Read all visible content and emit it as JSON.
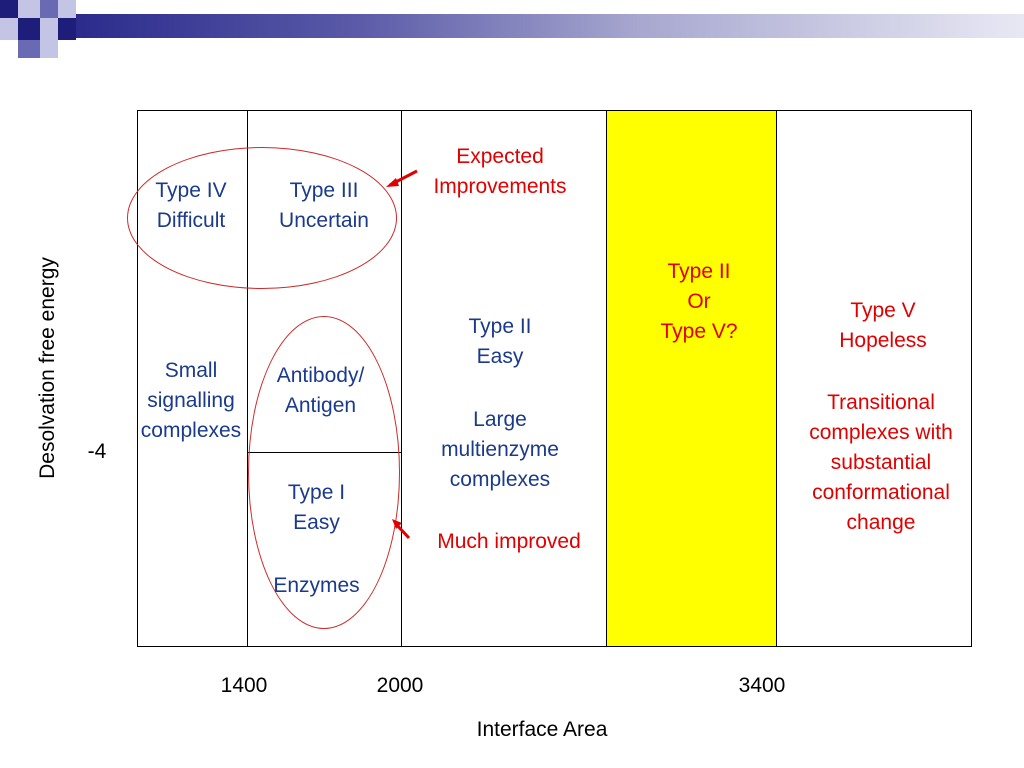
{
  "diagram": {
    "axes": {
      "xlabel": "Interface Area",
      "ylabel": "Desolvation free energy",
      "x_ticks": [
        "1400",
        "2000",
        "3400"
      ],
      "y_ticks": [
        "-4"
      ]
    },
    "regions": {
      "small": "Small\nsignalling\ncomplexes",
      "type4": "Type IV\nDifficult",
      "type3": "Type III\nUncertain",
      "antibody": "Antibody/\nAntigen",
      "type1": "Type I\nEasy",
      "enzymes": "Enzymes",
      "type2": "Type II\nEasy",
      "large": "Large\nmultienzyme\ncomplexes",
      "type2or5": "Type II\nOr\nType V?",
      "type5": "Type V\nHopeless",
      "transitional": "Transitional\ncomplexes with\nsubstantial\nconformational\nchange"
    },
    "annotations": {
      "expected": "Expected\nImprovements",
      "much_improved": "Much improved"
    }
  },
  "colors": {
    "region_text": "#1a3a8c",
    "annotation": "#e00000",
    "highlight_band": "#ffff00",
    "ellipse": "#cc2a2a"
  },
  "icons": [
    "arrow-icon",
    "arrow-icon"
  ]
}
